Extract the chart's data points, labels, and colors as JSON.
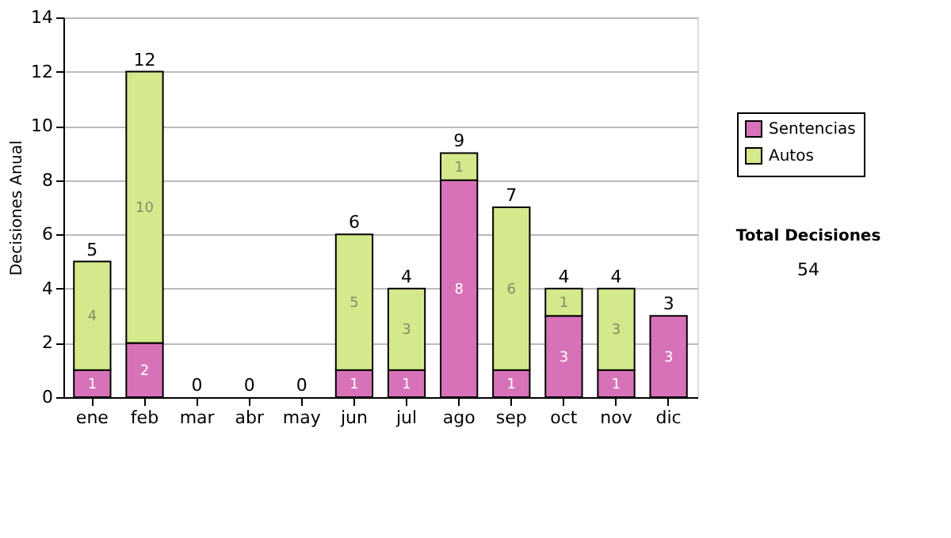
{
  "chart_data": {
    "type": "bar",
    "stacked": true,
    "ylabel": "Decisiones Anual",
    "categories": [
      "ene",
      "feb",
      "mar",
      "abr",
      "may",
      "jun",
      "jul",
      "ago",
      "sep",
      "oct",
      "nov",
      "dic"
    ],
    "series": [
      {
        "name": "Sentencias",
        "color": "#d872b8",
        "values": [
          1,
          2,
          0,
          0,
          0,
          1,
          1,
          8,
          1,
          3,
          1,
          3
        ],
        "value_labels": [
          "1",
          "2",
          null,
          null,
          null,
          "1",
          "1",
          "8",
          "1",
          "3",
          "1",
          "3"
        ]
      },
      {
        "name": "Autos",
        "color": "#d4e88c",
        "values": [
          4,
          10,
          0,
          0,
          0,
          5,
          3,
          1,
          6,
          1,
          3,
          0
        ],
        "value_labels": [
          "4",
          "10",
          null,
          null,
          null,
          "5",
          "3",
          "1",
          "6",
          "1",
          "3",
          null
        ]
      }
    ],
    "totals": [
      "5",
      "12",
      "0",
      "0",
      "0",
      "6",
      "4",
      "9",
      "7",
      "4",
      "4",
      "3"
    ],
    "ylim": [
      0,
      14
    ],
    "yticks": [
      0,
      2,
      4,
      6,
      8,
      10,
      12,
      14
    ],
    "grid": "y",
    "legend": "right",
    "annotations": [
      "Total Decisiones",
      "54"
    ]
  }
}
